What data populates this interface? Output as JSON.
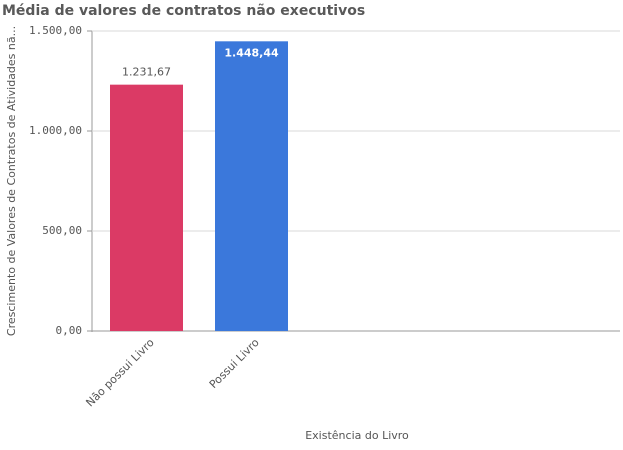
{
  "chart_data": {
    "type": "bar",
    "title": "Média de valores de contratos não executivos",
    "x_label": "Existência do Livro",
    "y_label": "Crescimento de Valores de Contratos de Atividades nã...",
    "categories": [
      "Não possui Livro",
      "Possui Livro"
    ],
    "values": [
      1231.67,
      1448.44
    ],
    "value_labels": [
      "1.231,67",
      "1.448,44"
    ],
    "colors": [
      "#db3a65",
      "#3b78db"
    ],
    "ylim": [
      0,
      1500
    ],
    "yticks": [
      {
        "value": 0,
        "label": "0,00"
      },
      {
        "value": 500,
        "label": "500,00"
      },
      {
        "value": 1000,
        "label": "1.000,00"
      },
      {
        "value": 1500,
        "label": "1.500,00"
      }
    ],
    "grid": true
  }
}
